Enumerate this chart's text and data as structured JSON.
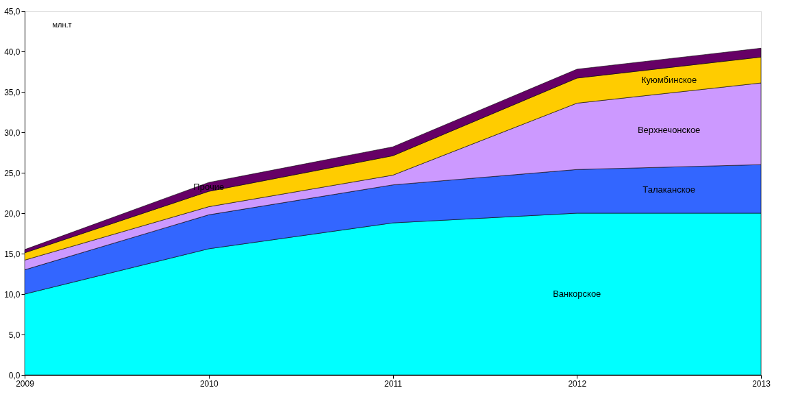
{
  "chart_data": {
    "type": "area",
    "stacked": true,
    "ylabel": "млн.т",
    "x": [
      2009,
      2010,
      2011,
      2012,
      2013
    ],
    "xlim": [
      2009,
      2013
    ],
    "xticks": [
      2009,
      2010,
      2011,
      2012,
      2013
    ],
    "ylim": [
      0,
      45
    ],
    "yticks": [
      {
        "value": 0,
        "label": "0,0"
      },
      {
        "value": 5,
        "label": "5,0"
      },
      {
        "value": 10,
        "label": "10,0"
      },
      {
        "value": 15,
        "label": "15,0"
      },
      {
        "value": 20,
        "label": "20,0"
      },
      {
        "value": 25,
        "label": "25,0"
      },
      {
        "value": 30,
        "label": "30,0"
      },
      {
        "value": 35,
        "label": "35,0"
      },
      {
        "value": 40,
        "label": "40,0"
      },
      {
        "value": 45,
        "label": "45,0"
      }
    ],
    "grid": false,
    "series": [
      {
        "name": "Ванкорское",
        "color": "#00ffff",
        "values": [
          10.0,
          15.6,
          18.8,
          20.0,
          20.0
        ]
      },
      {
        "name": "Талаканское",
        "color": "#3366ff",
        "values": [
          3.0,
          4.2,
          4.7,
          5.4,
          6.0
        ]
      },
      {
        "name": "Верхнечонское",
        "color": "#cc99ff",
        "values": [
          1.2,
          1.0,
          1.2,
          8.2,
          10.1
        ]
      },
      {
        "name": "Куюмбинское",
        "color": "#ffcc00",
        "values": [
          0.9,
          1.9,
          2.4,
          3.1,
          3.2
        ]
      },
      {
        "name": "Прочие",
        "color": "#660066",
        "values": [
          0.4,
          1.1,
          1.1,
          1.1,
          1.1
        ]
      }
    ]
  }
}
